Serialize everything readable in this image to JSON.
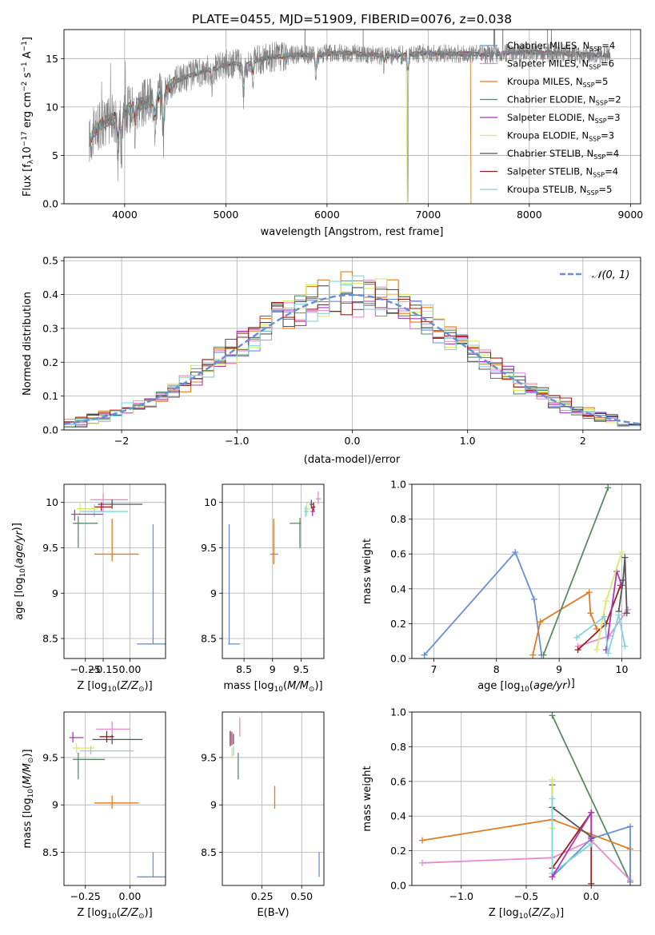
{
  "figure": {
    "title": "PLATE=0455, MJD=51909, FIBERID=0076, z=0.038"
  },
  "colors": {
    "Chabrier MILES": "#6a8fd8",
    "Salpeter MILES": "#e58bd0",
    "Kroupa MILES": "#e07b1f",
    "Chabrier ELODIE": "#5a8a64",
    "Salpeter ELODIE": "#a838b8",
    "Kroupa ELODIE": "#dce86a",
    "Chabrier STELIB": "#555555",
    "Salpeter STELIB": "#a11a1a",
    "Kroupa STELIB": "#7dd6dc",
    "spectrum": "#808080"
  },
  "chart_data": [
    {
      "id": "spectrum",
      "type": "line",
      "xlabel": "wavelength [Angstrom, rest frame]",
      "ylabel": "Flux [fλ10⁻¹⁷ erg cm⁻² s⁻¹ A⁻¹]",
      "xlim": [
        3400,
        9100
      ],
      "ylim": [
        0,
        18
      ],
      "xticks": [
        4000,
        5000,
        6000,
        7000,
        8000,
        9000
      ],
      "yticks": [
        0,
        5,
        10,
        15
      ],
      "legend": "top-right",
      "legend_entries": [
        {
          "label": "Chabrier MILES, N",
          "sub": "SSP",
          "suffix": "=4",
          "color": "#6a8fd8"
        },
        {
          "label": "Salpeter MILES, N",
          "sub": "SSP",
          "suffix": "=6",
          "color": "#e58bd0"
        },
        {
          "label": "Kroupa MILES, N",
          "sub": "SSP",
          "suffix": "=5",
          "color": "#e07b1f"
        },
        {
          "label": "Chabrier ELODIE, N",
          "sub": "SSP",
          "suffix": "=2",
          "color": "#5a8a64"
        },
        {
          "label": "Salpeter ELODIE, N",
          "sub": "SSP",
          "suffix": "=3",
          "color": "#a838b8"
        },
        {
          "label": "Kroupa ELODIE, N",
          "sub": "SSP",
          "suffix": "=3",
          "color": "#dce86a"
        },
        {
          "label": "Chabrier STELIB, N",
          "sub": "SSP",
          "suffix": "=4",
          "color": "#555555"
        },
        {
          "label": "Salpeter STELIB, N",
          "sub": "SSP",
          "suffix": "=4",
          "color": "#a11a1a"
        },
        {
          "label": "Kroupa STELIB, N",
          "sub": "SSP",
          "suffix": "=5",
          "color": "#7dd6dc"
        }
      ],
      "continuum": [
        [
          3650,
          6.5
        ],
        [
          3700,
          7.5
        ],
        [
          3800,
          8.5
        ],
        [
          3900,
          8.8
        ],
        [
          4000,
          9.5
        ],
        [
          4100,
          10.2
        ],
        [
          4200,
          10.4
        ],
        [
          4300,
          10.8
        ],
        [
          4400,
          11.6
        ],
        [
          4500,
          12.6
        ],
        [
          4600,
          13.1
        ],
        [
          4700,
          13.4
        ],
        [
          4800,
          13.8
        ],
        [
          4900,
          14.0
        ],
        [
          5000,
          14.4
        ],
        [
          5100,
          14.5
        ],
        [
          5200,
          14.3
        ],
        [
          5300,
          14.8
        ],
        [
          5400,
          15.1
        ],
        [
          5500,
          15.2
        ],
        [
          5600,
          15.3
        ],
        [
          5700,
          15.4
        ],
        [
          5800,
          15.4
        ],
        [
          5900,
          15.3
        ],
        [
          6000,
          15.5
        ],
        [
          6200,
          15.6
        ],
        [
          6400,
          15.4
        ],
        [
          6600,
          15.3
        ],
        [
          6800,
          15.4
        ],
        [
          7000,
          15.6
        ],
        [
          7200,
          15.5
        ],
        [
          7400,
          15.5
        ],
        [
          7600,
          15.4
        ],
        [
          7800,
          15.6
        ],
        [
          8000,
          15.7
        ],
        [
          8200,
          15.6
        ],
        [
          8400,
          15.5
        ],
        [
          8600,
          15.4
        ],
        [
          8800,
          15.3
        ]
      ],
      "absorption_features": [
        [
          3933,
          -5.0
        ],
        [
          3968,
          -4.5
        ],
        [
          4101,
          -3.0
        ],
        [
          4304,
          -3.5
        ],
        [
          4383,
          -5.8
        ],
        [
          4861,
          -2.0
        ],
        [
          5175,
          -4.0
        ],
        [
          5270,
          -1.5
        ],
        [
          5890,
          -2.5
        ],
        [
          6563,
          -1.0
        ],
        [
          6800,
          -15.4
        ]
      ],
      "model_cutoffs": [
        {
          "series": "Kroupa MILES",
          "x": 7420
        },
        {
          "series": "Kroupa ELODIE",
          "x": 6790
        }
      ]
    },
    {
      "id": "residual-histogram",
      "type": "line",
      "xlabel": "(data-model)/error",
      "ylabel": "Normed distribution",
      "xlim": [
        -2.5,
        2.5
      ],
      "ylim": [
        0,
        0.51
      ],
      "xticks": [
        -2,
        -1,
        0,
        1,
        2
      ],
      "yticks": [
        0.0,
        0.1,
        0.2,
        0.3,
        0.4,
        0.5
      ],
      "legend": "top-right",
      "legend_entries": [
        {
          "label": "𝒩(0, 1)",
          "color": "#6a8fd8",
          "dashed": true
        }
      ],
      "bin_width": 0.1
    },
    {
      "id": "age-vs-Z",
      "type": "scatter",
      "xlabel": "Z [log₁₀(Z/Z⊙)]",
      "ylabel": "age [log₁₀(age/yr)]",
      "xlim": [
        -0.37,
        0.2
      ],
      "ylim": [
        8.28,
        10.2
      ],
      "xticks": [
        -0.25,
        -0.15,
        0.0
      ],
      "xticklabels": [
        "−0.25",
        "−0.15",
        "0.00"
      ],
      "yticks": [
        8.5,
        9.0,
        9.5,
        10.0
      ],
      "points": [
        {
          "series": "Chabrier MILES",
          "x": 0.13,
          "y": 8.44,
          "xlo": 0.04,
          "xhi": 0.2,
          "ylo": 8.44,
          "yhi": 9.76
        },
        {
          "series": "Kroupa MILES",
          "x": -0.1,
          "y": 9.43,
          "xlo": -0.2,
          "xhi": 0.05,
          "ylo": 9.35,
          "yhi": 9.82
        },
        {
          "series": "Chabrier ELODIE",
          "x": -0.29,
          "y": 9.77,
          "xlo": -0.32,
          "xhi": -0.18,
          "ylo": 9.5,
          "yhi": 9.85
        },
        {
          "series": "Salpeter MILES",
          "x": -0.15,
          "y": 10.03,
          "xlo": -0.22,
          "xhi": -0.01,
          "ylo": 9.9,
          "yhi": 10.1
        },
        {
          "series": "Chabrier STELIB",
          "x": -0.1,
          "y": 9.98,
          "xlo": -0.18,
          "xhi": 0.07,
          "ylo": 9.93,
          "yhi": 10.03
        },
        {
          "series": "Salpeter STELIB",
          "x": -0.16,
          "y": 9.95,
          "xlo": -0.2,
          "xhi": -0.1,
          "ylo": 9.9,
          "yhi": 10.0
        },
        {
          "series": "Kroupa STELIB",
          "x": -0.2,
          "y": 9.9,
          "xlo": -0.28,
          "xhi": -0.01,
          "ylo": 9.84,
          "yhi": 9.98
        },
        {
          "series": "Kroupa ELODIE",
          "x": -0.28,
          "y": 9.93,
          "xlo": -0.3,
          "xhi": -0.18,
          "ylo": 9.86,
          "yhi": 10.0
        },
        {
          "series": "Salpeter ELODIE",
          "x": -0.31,
          "y": 9.87,
          "xlo": -0.33,
          "xhi": -0.15,
          "ylo": 9.8,
          "yhi": 9.92
        }
      ]
    },
    {
      "id": "age-vs-mass",
      "type": "scatter",
      "xlabel": "mass [log₁₀(M/M⊙)]",
      "ylabel": "",
      "xlim": [
        8.12,
        9.9
      ],
      "ylim": [
        8.28,
        10.2
      ],
      "xticks": [
        8.5,
        9.0,
        9.5
      ],
      "yticks": [
        8.5,
        9.0,
        9.5,
        10.0
      ],
      "points": [
        {
          "series": "Chabrier MILES",
          "x": 8.24,
          "y": 8.44,
          "xlo": 8.22,
          "xhi": 8.43,
          "ylo": 8.44,
          "yhi": 9.76
        },
        {
          "series": "Kroupa MILES",
          "x": 9.02,
          "y": 9.43,
          "xlo": 8.96,
          "xhi": 9.1,
          "ylo": 9.32,
          "yhi": 9.82
        },
        {
          "series": "Chabrier ELODIE",
          "x": 9.48,
          "y": 9.77,
          "xlo": 9.3,
          "xhi": 9.5,
          "ylo": 9.5,
          "yhi": 9.83
        },
        {
          "series": "Kroupa ELODIE",
          "x": 9.6,
          "y": 9.93,
          "xlo": 9.55,
          "xhi": 9.65,
          "ylo": 9.85,
          "yhi": 10.0
        },
        {
          "series": "Kroupa STELIB",
          "x": 9.58,
          "y": 9.9,
          "xlo": 9.55,
          "xhi": 9.63,
          "ylo": 9.84,
          "yhi": 9.96
        },
        {
          "series": "Chabrier STELIB",
          "x": 9.68,
          "y": 9.98,
          "xlo": 9.65,
          "xhi": 9.72,
          "ylo": 9.93,
          "yhi": 10.03
        },
        {
          "series": "Salpeter STELIB",
          "x": 9.72,
          "y": 9.95,
          "xlo": 9.69,
          "xhi": 9.75,
          "ylo": 9.9,
          "yhi": 10.0
        },
        {
          "series": "Salpeter ELODIE",
          "x": 9.7,
          "y": 9.9,
          "xlo": 9.67,
          "xhi": 9.74,
          "ylo": 9.85,
          "yhi": 9.95
        },
        {
          "series": "Salpeter MILES",
          "x": 9.8,
          "y": 10.04,
          "xlo": 9.76,
          "xhi": 9.85,
          "ylo": 9.98,
          "yhi": 10.12
        }
      ]
    },
    {
      "id": "mass-weight-vs-age",
      "type": "line",
      "xlabel": "age [log₁₀(age/yr)]",
      "ylabel": "mass weight",
      "xlim": [
        6.65,
        10.3
      ],
      "ylim": [
        0,
        1.0
      ],
      "xticks": [
        7,
        8,
        9,
        10
      ],
      "yticks": [
        0.0,
        0.2,
        0.4,
        0.6,
        0.8,
        1.0
      ],
      "series": [
        {
          "name": "Chabrier MILES",
          "x": [
            6.85,
            8.3,
            8.6,
            8.72
          ],
          "y": [
            0.02,
            0.61,
            0.34,
            0.02
          ]
        },
        {
          "name": "Kroupa MILES",
          "x": [
            8.58,
            8.7,
            9.48,
            9.5,
            9.6
          ],
          "y": [
            0.02,
            0.21,
            0.38,
            0.26,
            0.17
          ]
        },
        {
          "name": "Chabrier ELODIE",
          "x": [
            8.75,
            9.78
          ],
          "y": [
            0.02,
            0.98
          ]
        },
        {
          "name": "Salpeter MILES",
          "x": [
            9.3,
            9.8,
            10.05,
            10.1
          ],
          "y": [
            0.07,
            0.13,
            0.26,
            0.28
          ]
        },
        {
          "name": "Salpeter STELIB",
          "x": [
            9.3,
            9.75,
            9.98
          ],
          "y": [
            0.05,
            0.2,
            0.42
          ]
        },
        {
          "name": "Salpeter ELODIE",
          "x": [
            9.75,
            9.92,
            10.0
          ],
          "y": [
            0.05,
            0.5,
            0.42
          ]
        },
        {
          "name": "Kroupa ELODIE",
          "x": [
            9.6,
            9.75,
            10.0
          ],
          "y": [
            0.05,
            0.33,
            0.61
          ]
        },
        {
          "name": "Chabrier STELIB",
          "x": [
            9.95,
            10.02,
            10.05,
            10.08
          ],
          "y": [
            0.27,
            0.45,
            0.58,
            0.26
          ]
        },
        {
          "name": "Kroupa STELIB",
          "x": [
            9.28,
            9.72,
            9.78,
            9.95,
            10.05
          ],
          "y": [
            0.12,
            0.24,
            0.03,
            0.25,
            0.07
          ]
        }
      ]
    },
    {
      "id": "mass-vs-Z",
      "type": "scatter",
      "xlabel": "Z [log₁₀(Z/Z⊙)]",
      "ylabel": "mass [log₁₀(M/M⊙)]",
      "xlim": [
        -0.37,
        0.2
      ],
      "ylim": [
        8.15,
        9.98
      ],
      "xticks": [
        -0.25,
        0.0
      ],
      "xticklabels": [
        "−0.25",
        "0.00"
      ],
      "yticks": [
        8.5,
        9.0,
        9.5
      ],
      "points": [
        {
          "series": "Chabrier MILES",
          "x": 0.13,
          "y": 8.24,
          "xlo": 0.04,
          "xhi": 0.2,
          "ylo": 8.24,
          "yhi": 8.5
        },
        {
          "series": "Kroupa MILES",
          "x": -0.1,
          "y": 9.02,
          "xlo": -0.2,
          "xhi": 0.05,
          "ylo": 8.96,
          "yhi": 9.1
        },
        {
          "series": "Chabrier ELODIE",
          "x": -0.29,
          "y": 9.48,
          "xlo": -0.32,
          "xhi": -0.14,
          "ylo": 9.27,
          "yhi": 9.55
        },
        {
          "series": "Salpeter MILES",
          "x": -0.1,
          "y": 9.8,
          "xlo": -0.19,
          "xhi": 0.0,
          "ylo": 9.72,
          "yhi": 9.88
        },
        {
          "series": "Chabrier STELIB",
          "x": -0.1,
          "y": 9.69,
          "xlo": -0.21,
          "xhi": 0.07,
          "ylo": 9.64,
          "yhi": 9.74
        },
        {
          "series": "Salpeter STELIB",
          "x": -0.13,
          "y": 9.72,
          "xlo": -0.17,
          "xhi": -0.09,
          "ylo": 9.66,
          "yhi": 9.78
        },
        {
          "series": "Kroupa STELIB",
          "x": -0.22,
          "y": 9.57,
          "xlo": -0.28,
          "xhi": 0.02,
          "ylo": 9.53,
          "yhi": 9.62
        },
        {
          "series": "Kroupa ELODIE",
          "x": -0.3,
          "y": 9.6,
          "xlo": -0.32,
          "xhi": -0.2,
          "ylo": 9.55,
          "yhi": 9.65
        },
        {
          "series": "Salpeter ELODIE",
          "x": -0.32,
          "y": 9.71,
          "xlo": -0.34,
          "xhi": -0.26,
          "ylo": 9.66,
          "yhi": 9.77
        }
      ]
    },
    {
      "id": "mass-vs-ebv",
      "type": "scatter",
      "xlabel": "E(B-V)",
      "ylabel": "",
      "xlim": [
        0.0,
        0.64
      ],
      "ylim": [
        8.15,
        9.98
      ],
      "xticks": [
        0.25,
        0.5
      ],
      "xticklabels": [
        "0.25",
        "0.50"
      ],
      "yticks": [
        8.5,
        9.0,
        9.5
      ],
      "points": [
        {
          "series": "Chabrier MILES",
          "x": 0.61,
          "ylo": 8.24,
          "yhi": 8.5
        },
        {
          "series": "Kroupa MILES",
          "x": 0.33,
          "ylo": 8.96,
          "yhi": 9.2
        },
        {
          "series": "Chabrier ELODIE",
          "x": 0.1,
          "ylo": 9.27,
          "yhi": 9.55
        },
        {
          "series": "Salpeter MILES",
          "x": 0.11,
          "ylo": 9.72,
          "yhi": 9.92
        },
        {
          "series": "Salpeter STELIB",
          "x": 0.05,
          "ylo": 9.62,
          "yhi": 9.78
        },
        {
          "series": "Salpeter ELODIE",
          "x": 0.06,
          "ylo": 9.63,
          "yhi": 9.77
        },
        {
          "series": "Kroupa ELODIE",
          "x": 0.06,
          "ylo": 9.5,
          "yhi": 9.6
        },
        {
          "series": "Kroupa STELIB",
          "x": 0.07,
          "ylo": 9.52,
          "yhi": 9.62
        },
        {
          "series": "Chabrier STELIB",
          "x": 0.07,
          "ylo": 9.64,
          "yhi": 9.75
        }
      ]
    },
    {
      "id": "mass-weight-vs-Z",
      "type": "line",
      "xlabel": "Z [log₁₀(Z/Z⊙)]",
      "ylabel": "mass weight",
      "xlim": [
        -1.38,
        0.38
      ],
      "ylim": [
        0,
        1.0
      ],
      "xticks": [
        -1.0,
        -0.5,
        0.0
      ],
      "xticklabels": [
        "−1.0",
        "−0.5",
        "0.0"
      ],
      "yticks": [
        0.0,
        0.2,
        0.4,
        0.6,
        0.8,
        1.0
      ],
      "series": [
        {
          "name": "Chabrier ELODIE",
          "x": [
            -0.3,
            0.3
          ],
          "y": [
            0.98,
            0.02
          ]
        },
        {
          "name": "Kroupa MILES",
          "x": [
            -1.3,
            -0.3,
            0.3,
            0.3
          ],
          "y": [
            0.26,
            0.38,
            0.21,
            0.02
          ]
        },
        {
          "name": "Salpeter MILES",
          "x": [
            -1.3,
            -0.3,
            0.0,
            0.3
          ],
          "y": [
            0.13,
            0.16,
            0.26,
            0.03
          ]
        },
        {
          "name": "Chabrier MILES",
          "x": [
            -0.3,
            0.0,
            0.3,
            0.3
          ],
          "y": [
            0.05,
            0.27,
            0.34,
            0.02
          ]
        },
        {
          "name": "Salpeter STELIB",
          "x": [
            -0.3,
            0.0,
            0.0
          ],
          "y": [
            0.1,
            0.42,
            0.01
          ]
        },
        {
          "name": "Chabrier STELIB",
          "x": [
            -0.3,
            -0.3,
            0.0
          ],
          "y": [
            0.58,
            0.45,
            0.28
          ]
        },
        {
          "name": "Kroupa ELODIE",
          "x": [
            -0.3,
            -0.3,
            -0.3
          ],
          "y": [
            0.61,
            0.33,
            0.05
          ]
        },
        {
          "name": "Kroupa STELIB",
          "x": [
            -0.3,
            -0.3,
            0.0
          ],
          "y": [
            0.5,
            0.07,
            0.24
          ]
        },
        {
          "name": "Salpeter ELODIE",
          "x": [
            -0.3,
            0.0,
            0.0
          ],
          "y": [
            0.05,
            0.42,
            0.27
          ]
        }
      ]
    }
  ]
}
